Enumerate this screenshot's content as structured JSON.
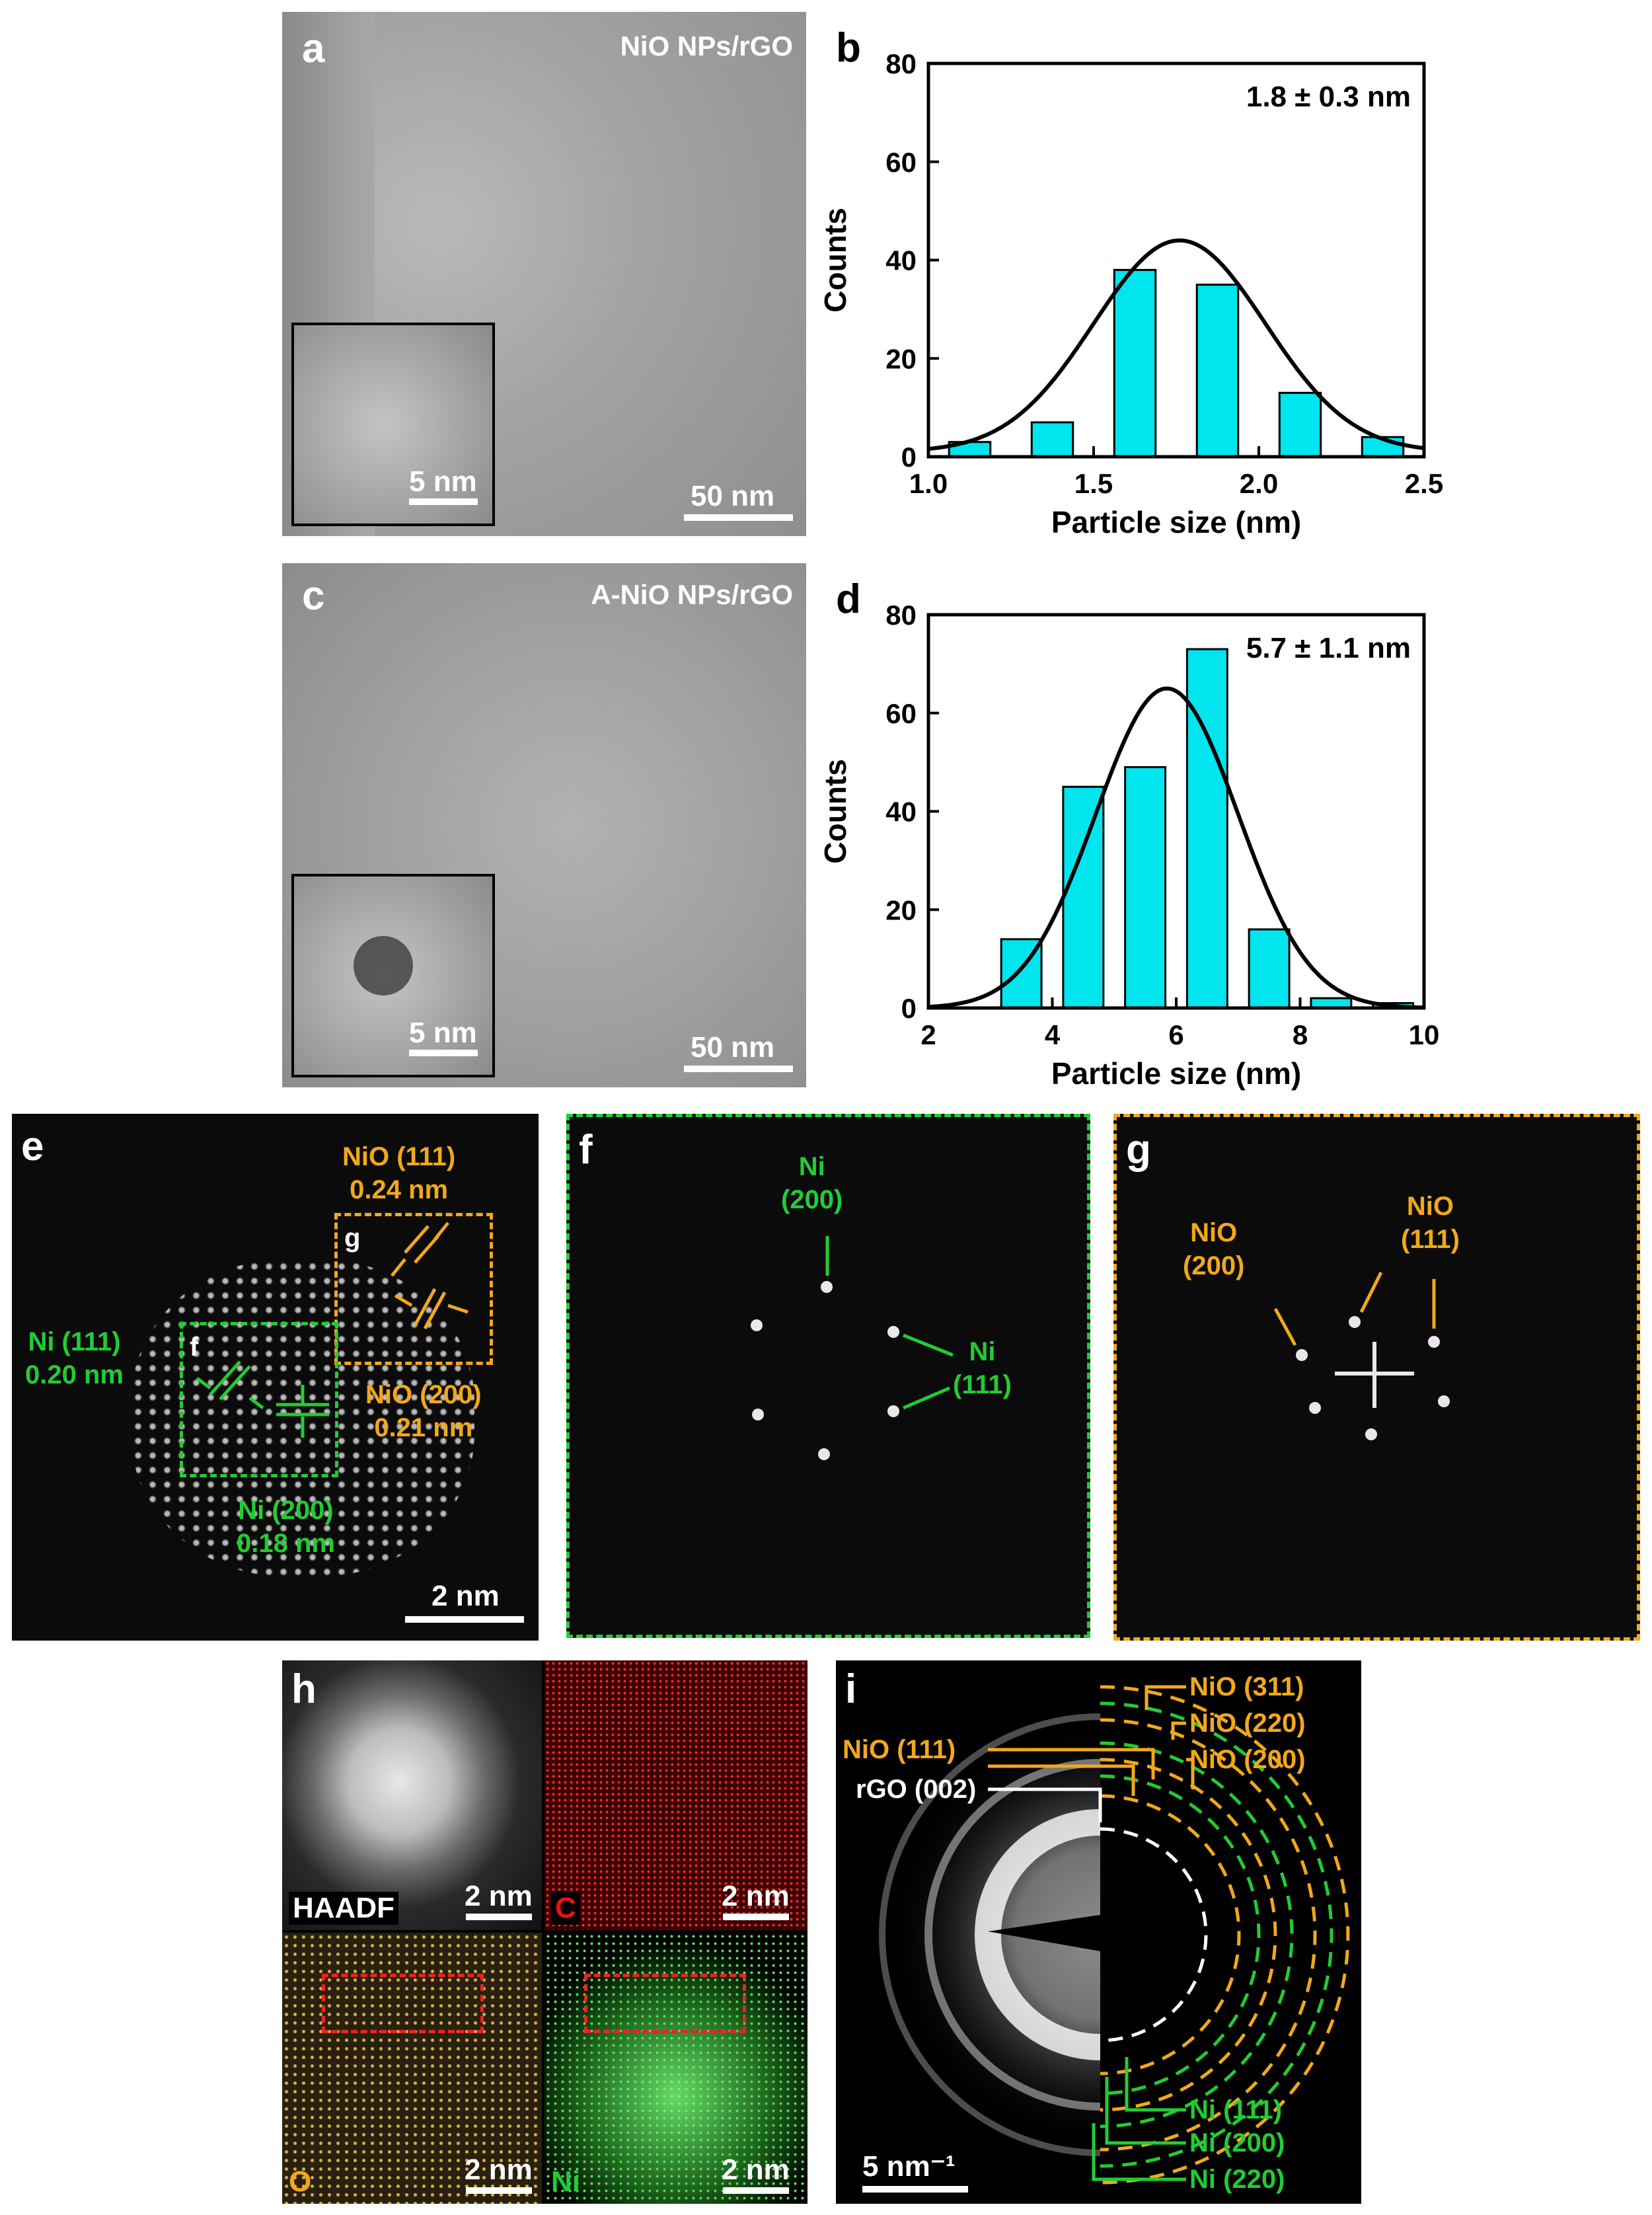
{
  "panels": {
    "a": {
      "label": "a",
      "title": "NiO NPs/rGO",
      "scale_main": "50 nm",
      "scale_inset": "5 nm"
    },
    "b": {
      "label": "b"
    },
    "c": {
      "label": "c",
      "title": "A-NiO NPs/rGO",
      "scale_main": "50 nm",
      "scale_inset": "5 nm"
    },
    "d": {
      "label": "d"
    },
    "e": {
      "label": "e",
      "scale": "2 nm",
      "box_f": "f",
      "box_g": "g",
      "nio111": "NiO (111)",
      "nio111_d": "0.24 nm",
      "nio200": "NiO (200)",
      "nio200_d": "0.21 nm",
      "ni111": "Ni (111)",
      "ni111_d": "0.20 nm",
      "ni200": "Ni (200)",
      "ni200_d": "0.18 nm"
    },
    "f": {
      "label": "f",
      "ni": "Ni",
      "ni200": "(200)",
      "ni111": "(111)"
    },
    "g": {
      "label": "g",
      "nio1": "NiO",
      "nio1_hkl": "(200)",
      "nio2": "NiO",
      "nio2_hkl": "(111)"
    },
    "h": {
      "label": "h",
      "haadf": "HAADF",
      "c": "C",
      "o": "O",
      "ni": "Ni",
      "scale": "2 nm"
    },
    "i": {
      "label": "i",
      "scale": "5 nm⁻¹",
      "nio311": "NiO (311)",
      "nio220": "NiO (220)",
      "nio200": "NiO (200)",
      "nio111": "NiO (111)",
      "rgo002": "rGO (002)",
      "ni111": "Ni (111)",
      "ni200": "Ni (200)",
      "ni220": "Ni (220)"
    }
  },
  "colors": {
    "green": "#22cc33",
    "orange": "#f2a81a",
    "bar": "#00e5ee"
  },
  "chart_data": [
    {
      "type": "bar",
      "panel": "b",
      "annotation": "1.8 ± 0.3 nm",
      "xlabel": "Particle size (nm)",
      "ylabel": "Counts",
      "xlim": [
        1.0,
        2.5
      ],
      "ylim": [
        0,
        80
      ],
      "xticks": [
        "1.0",
        "1.5",
        "2.0",
        "2.5"
      ],
      "yticks": [
        "0",
        "20",
        "40",
        "60",
        "80"
      ],
      "bar_width": 0.125,
      "x": [
        1.125,
        1.375,
        1.625,
        1.875,
        2.125,
        2.375
      ],
      "values": [
        3,
        7,
        38,
        35,
        13,
        4
      ],
      "fit": {
        "mean": 1.76,
        "sigma": 0.26,
        "amplitude": 43,
        "baseline": 1
      }
    },
    {
      "type": "bar",
      "panel": "d",
      "annotation": "5.7 ± 1.1 nm",
      "xlabel": "Particle size (nm)",
      "ylabel": "Counts",
      "xlim": [
        2,
        10
      ],
      "ylim": [
        0,
        80
      ],
      "xticks": [
        "2",
        "4",
        "6",
        "8",
        "10"
      ],
      "yticks": [
        "0",
        "20",
        "40",
        "60",
        "80"
      ],
      "bar_width": 0.65,
      "x": [
        3.5,
        4.5,
        5.5,
        6.5,
        7.5,
        8.5,
        9.5
      ],
      "values": [
        14,
        45,
        49,
        73,
        16,
        2,
        1
      ],
      "fit": {
        "mean": 5.85,
        "sigma": 1.15,
        "amplitude": 65,
        "baseline": 0
      }
    }
  ]
}
